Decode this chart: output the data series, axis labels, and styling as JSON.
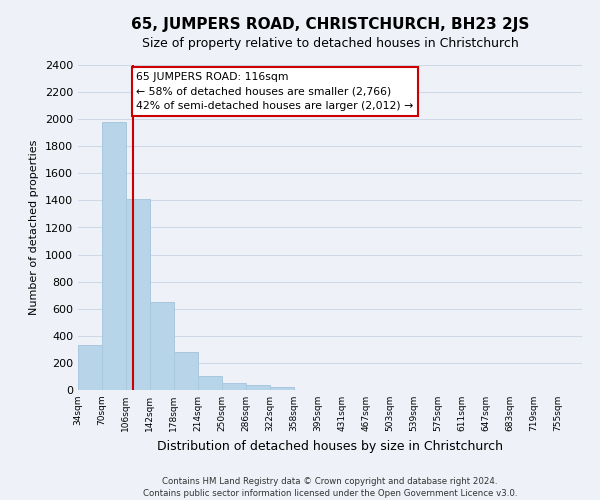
{
  "title": "65, JUMPERS ROAD, CHRISTCHURCH, BH23 2JS",
  "subtitle": "Size of property relative to detached houses in Christchurch",
  "xlabel": "Distribution of detached houses by size in Christchurch",
  "ylabel": "Number of detached properties",
  "bar_left_edges": [
    34,
    70,
    106,
    142,
    178,
    214,
    250,
    286,
    322,
    358,
    395,
    431,
    467,
    503,
    539,
    575,
    611,
    647,
    683,
    719
  ],
  "bar_heights": [
    330,
    1980,
    1410,
    650,
    280,
    105,
    50,
    35,
    20,
    0,
    0,
    0,
    0,
    0,
    0,
    0,
    0,
    0,
    0,
    0
  ],
  "bin_width": 36,
  "bar_color": "#b8d4e8",
  "bar_edge_color": "#a8c8e0",
  "tick_labels": [
    "34sqm",
    "70sqm",
    "106sqm",
    "142sqm",
    "178sqm",
    "214sqm",
    "250sqm",
    "286sqm",
    "322sqm",
    "358sqm",
    "395sqm",
    "431sqm",
    "467sqm",
    "503sqm",
    "539sqm",
    "575sqm",
    "611sqm",
    "647sqm",
    "683sqm",
    "719sqm",
    "755sqm"
  ],
  "vline_color": "#cc0000",
  "vline_x": 116,
  "annotation_text": "65 JUMPERS ROAD: 116sqm\n← 58% of detached houses are smaller (2,766)\n42% of semi-detached houses are larger (2,012) →",
  "annotation_box_color": "#ffffff",
  "annotation_box_edge": "#cc0000",
  "ylim": [
    0,
    2400
  ],
  "yticks": [
    0,
    200,
    400,
    600,
    800,
    1000,
    1200,
    1400,
    1600,
    1800,
    2000,
    2200,
    2400
  ],
  "footer_line1": "Contains HM Land Registry data © Crown copyright and database right 2024.",
  "footer_line2": "Contains public sector information licensed under the Open Government Licence v3.0.",
  "grid_color": "#d0d8e8",
  "background_color": "#eef2f8",
  "title_fontsize": 11,
  "subtitle_fontsize": 9,
  "ylabel_fontsize": 8,
  "xlabel_fontsize": 9,
  "tick_fontsize": 6.5,
  "ytick_fontsize": 8,
  "footer_fontsize": 6.2,
  "annotation_fontsize": 7.8
}
